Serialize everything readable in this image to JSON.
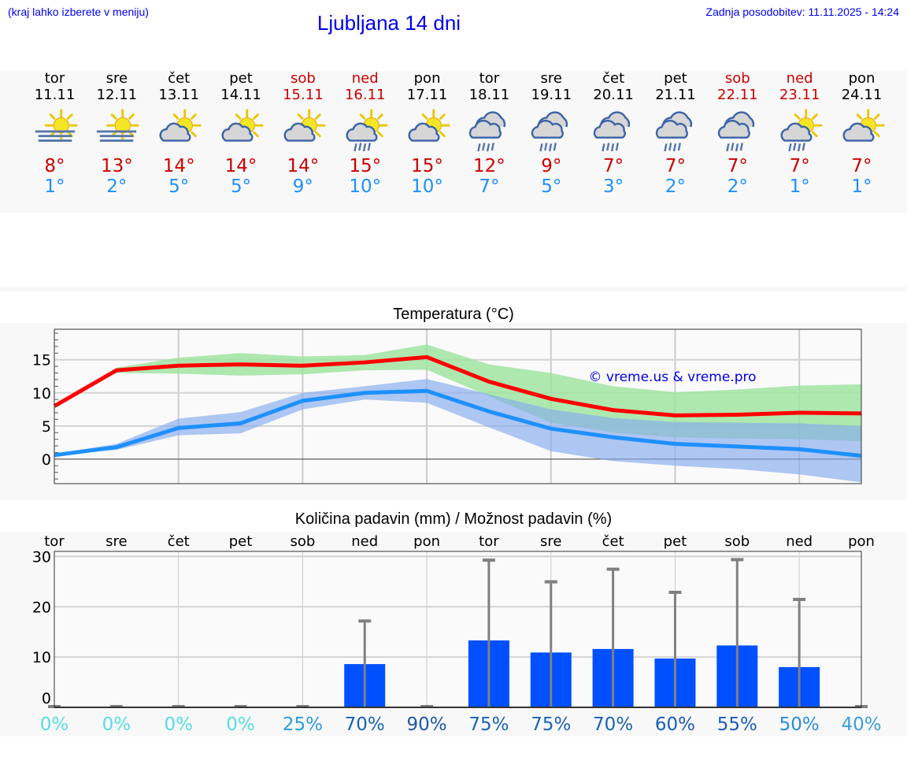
{
  "header": {
    "hint": "(kraj lahko izberete v meniju)",
    "title": "Ljubljana 14 dni",
    "updated": "Zadnja posodobitev: 11.11.2025 - 14:24"
  },
  "colors": {
    "max_temp": "#cc0000",
    "min_temp": "#1e90ff",
    "weekend": "#cc0000",
    "link": "#0000ee",
    "max_band": "#ace9ad",
    "min_band": "#aec6f4",
    "precip_bar": "#0050ff",
    "error_bar": "#808080"
  },
  "days": [
    {
      "name": "tor",
      "date": "11.11",
      "weekend": false,
      "icon": "sun-fog-icon",
      "max": "8°",
      "min": "1°"
    },
    {
      "name": "sre",
      "date": "12.11",
      "weekend": false,
      "icon": "sun-fog-icon",
      "max": "13°",
      "min": "2°"
    },
    {
      "name": "čet",
      "date": "13.11",
      "weekend": false,
      "icon": "partly-cloudy-icon",
      "max": "14°",
      "min": "5°"
    },
    {
      "name": "pet",
      "date": "14.11",
      "weekend": false,
      "icon": "partly-cloudy-icon",
      "max": "14°",
      "min": "5°"
    },
    {
      "name": "sob",
      "date": "15.11",
      "weekend": true,
      "icon": "partly-cloudy-icon",
      "max": "14°",
      "min": "9°"
    },
    {
      "name": "ned",
      "date": "16.11",
      "weekend": true,
      "icon": "partly-cloudy-rain-icon",
      "max": "15°",
      "min": "10°"
    },
    {
      "name": "pon",
      "date": "17.11",
      "weekend": false,
      "icon": "partly-cloudy-icon",
      "max": "15°",
      "min": "10°"
    },
    {
      "name": "tor",
      "date": "18.11",
      "weekend": false,
      "icon": "cloudy-rain-icon",
      "max": "12°",
      "min": "7°"
    },
    {
      "name": "sre",
      "date": "19.11",
      "weekend": false,
      "icon": "cloudy-rain-icon",
      "max": "9°",
      "min": "5°"
    },
    {
      "name": "čet",
      "date": "20.11",
      "weekend": false,
      "icon": "cloudy-rain-icon",
      "max": "7°",
      "min": "3°"
    },
    {
      "name": "pet",
      "date": "21.11",
      "weekend": false,
      "icon": "cloudy-rain-icon",
      "max": "7°",
      "min": "2°"
    },
    {
      "name": "sob",
      "date": "22.11",
      "weekend": true,
      "icon": "cloudy-rain-icon",
      "max": "7°",
      "min": "2°"
    },
    {
      "name": "ned",
      "date": "23.11",
      "weekend": true,
      "icon": "partly-cloudy-rain-icon",
      "max": "7°",
      "min": "1°"
    },
    {
      "name": "pon",
      "date": "24.11",
      "weekend": false,
      "icon": "partly-cloudy-icon",
      "max": "7°",
      "min": "1°"
    }
  ],
  "chart_data": [
    {
      "type": "line",
      "title": "Temperatura (°C)",
      "watermark": "© vreme.us & vreme.pro",
      "categories": [
        "11.11",
        "12.11",
        "13.11",
        "14.11",
        "15.11",
        "16.11",
        "17.11",
        "18.11",
        "19.11",
        "20.11",
        "21.11",
        "22.11",
        "23.11",
        "24.11"
      ],
      "ylim": [
        -3.7,
        19.6
      ],
      "yticks": [
        0,
        5,
        10,
        15
      ],
      "grid": true,
      "series": [
        {
          "role": "max",
          "color": "#ff0000",
          "values": [
            8,
            13.4,
            14.1,
            14.3,
            14.1,
            14.6,
            15.4,
            11.7,
            9.1,
            7.4,
            6.6,
            6.7,
            7.0,
            6.9
          ],
          "band_low": [
            8,
            13,
            12.9,
            12.6,
            12.8,
            13.4,
            13.5,
            9.5,
            5.5,
            4,
            3.3,
            3.1,
            3,
            2.7
          ],
          "band_high": [
            8,
            13.8,
            15.3,
            16,
            15.5,
            15.7,
            17.3,
            14.3,
            13,
            11,
            10.1,
            10.5,
            11.1,
            11.3
          ]
        },
        {
          "role": "min",
          "color": "#1e90ff",
          "values": [
            0.6,
            1.8,
            4.7,
            5.4,
            8.8,
            10,
            10.3,
            7.2,
            4.6,
            3.3,
            2.3,
            1.9,
            1.5,
            0.5
          ],
          "band_low": [
            0.6,
            1.4,
            3.6,
            3.9,
            7.5,
            9,
            8.5,
            4.8,
            1.2,
            -0.3,
            -1,
            -1.5,
            -2.3,
            -3.5
          ],
          "band_high": [
            0.8,
            2.3,
            6.1,
            7.1,
            10,
            11,
            12.1,
            9.8,
            7.5,
            6.2,
            5.6,
            5.5,
            5.4,
            5
          ]
        }
      ]
    },
    {
      "type": "bar",
      "title": "Količina padavin (mm) / Možnost padavin (%)",
      "categories": [
        "tor",
        "sre",
        "čet",
        "pet",
        "sob",
        "ned",
        "pon",
        "tor",
        "sre",
        "čet",
        "pet",
        "sob",
        "ned",
        "pon"
      ],
      "ylim": [
        0,
        31
      ],
      "yticks": [
        0,
        10,
        20,
        30
      ],
      "grid": true,
      "values": [
        0,
        0,
        0,
        0,
        0,
        8.6,
        0,
        13.3,
        10.9,
        11.6,
        9.7,
        12.3,
        8.0,
        0
      ],
      "error_high": [
        0,
        0,
        0,
        0,
        0,
        17.0,
        0,
        29.1,
        24.8,
        27.3,
        22.7,
        29.2,
        21.3,
        0
      ],
      "probability": [
        "0%",
        "0%",
        "0%",
        "0%",
        "25%",
        "70%",
        "90%",
        "75%",
        "75%",
        "70%",
        "60%",
        "55%",
        "50%",
        "40%"
      ],
      "probability_values": [
        0,
        0,
        0,
        0,
        25,
        70,
        90,
        75,
        75,
        70,
        60,
        55,
        50,
        40
      ]
    }
  ]
}
